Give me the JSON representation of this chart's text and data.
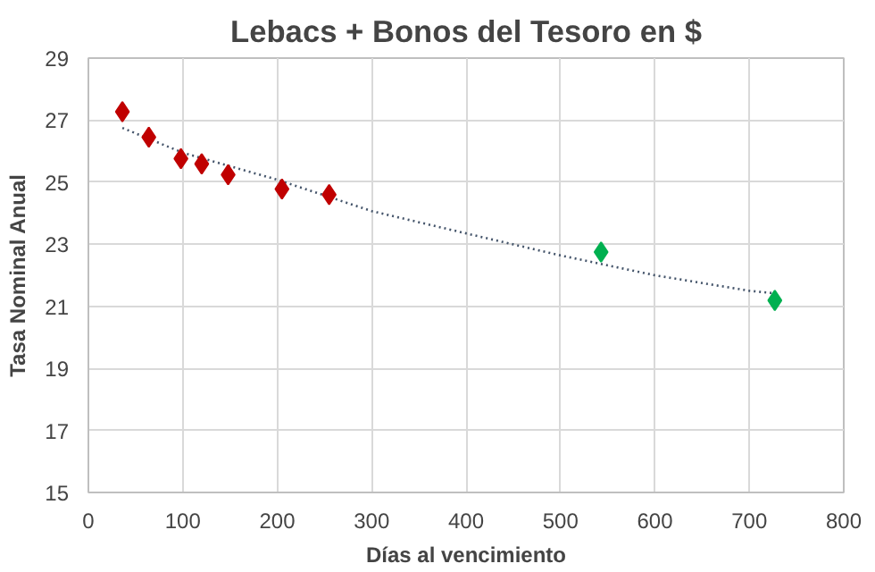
{
  "chart_data": {
    "type": "scatter",
    "title": "Lebacs + Bonos del Tesoro en $",
    "xlabel": "Días al vencimiento",
    "ylabel": "Tasa Nominal Anual",
    "xlim": [
      0,
      800
    ],
    "xticks": [
      0,
      100,
      200,
      300,
      400,
      500,
      600,
      700,
      800
    ],
    "ylim": [
      15,
      29
    ],
    "yticks": [
      15,
      17,
      19,
      21,
      23,
      25,
      27,
      29
    ],
    "grid": true,
    "marker": "diamond",
    "series": [
      {
        "color": "#c00000",
        "x": [
          36,
          64,
          98,
          120,
          148,
          205,
          255
        ],
        "values": [
          27.27,
          26.45,
          25.76,
          25.59,
          25.24,
          24.78,
          24.6
        ]
      },
      {
        "color": "#00b050",
        "x": [
          543,
          727
        ],
        "values": [
          22.75,
          21.19
        ]
      },
      {
        "type": "line",
        "color": "#44546a",
        "line_style": "dotted",
        "marker": "none",
        "x": [
          36,
          100,
          200,
          300,
          400,
          500,
          600,
          700,
          727
        ],
        "values": [
          26.75,
          25.95,
          25.08,
          24.07,
          23.35,
          22.64,
          22.0,
          21.5,
          21.42
        ]
      }
    ]
  }
}
